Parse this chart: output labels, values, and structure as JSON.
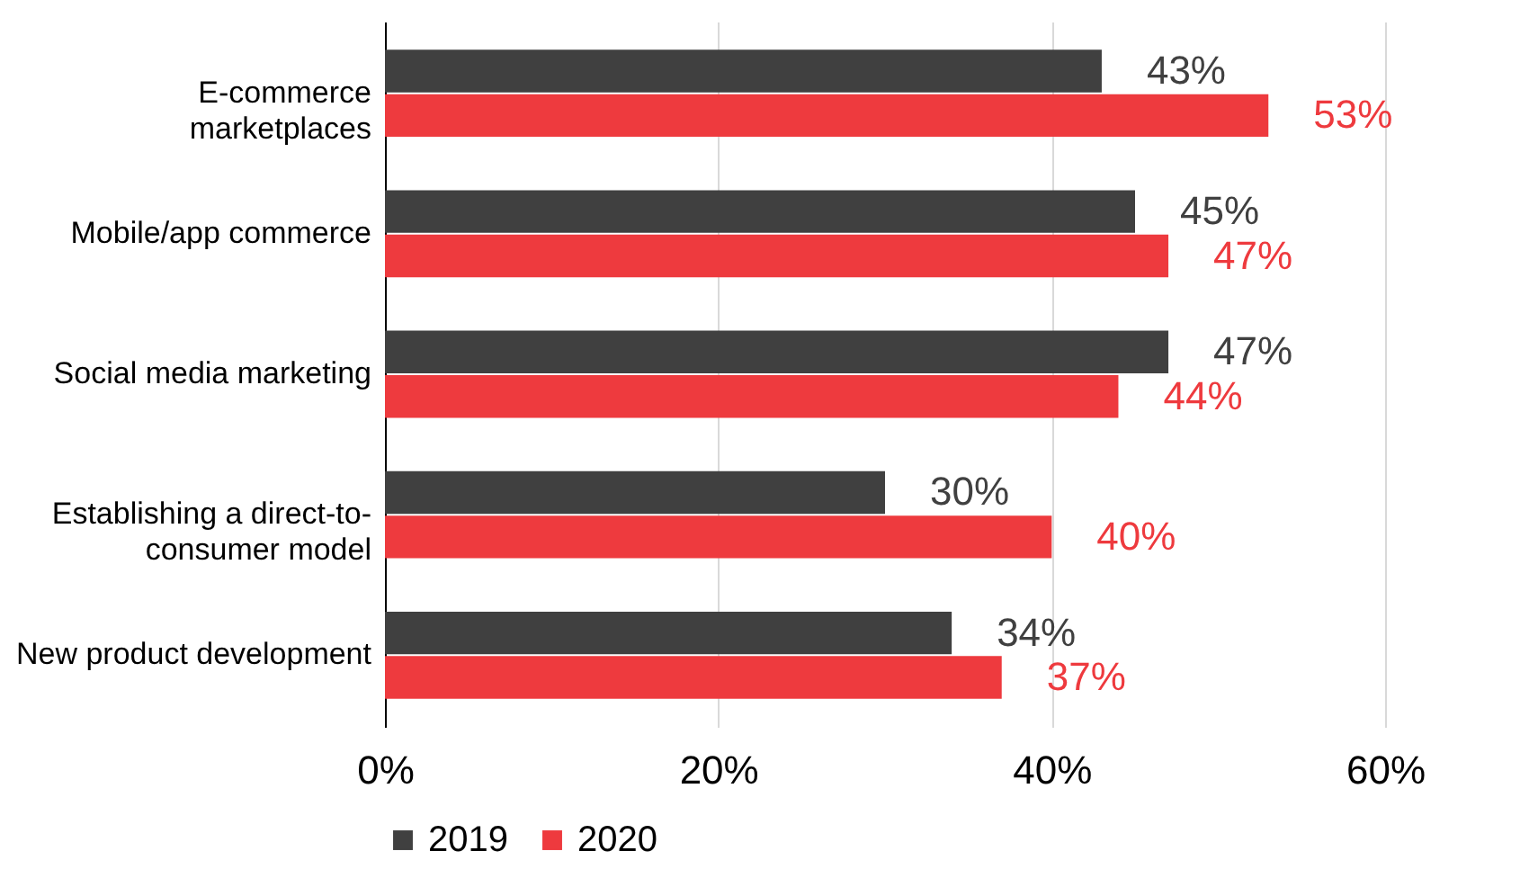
{
  "chart_data": {
    "type": "bar",
    "orientation": "horizontal",
    "categories": [
      "E-commerce\nmarketplaces",
      "Mobile/app commerce",
      "Social media marketing",
      "Establishing a direct-to-\nconsumer model",
      "New product development"
    ],
    "series": [
      {
        "name": "2019",
        "color": "#404040",
        "values": [
          43,
          45,
          47,
          30,
          34
        ],
        "value_labels": [
          "43%",
          "45%",
          "47%",
          "30%",
          "34%"
        ]
      },
      {
        "name": "2020",
        "color": "#ee3a3e",
        "values": [
          53,
          47,
          44,
          40,
          37
        ],
        "value_labels": [
          "53%",
          "47%",
          "44%",
          "40%",
          "37%"
        ]
      }
    ],
    "xlim": [
      0,
      60
    ],
    "xticks": [
      {
        "value": 0,
        "label": "0%"
      },
      {
        "value": 20,
        "label": "20%"
      },
      {
        "value": 40,
        "label": "40%"
      },
      {
        "value": 60,
        "label": "60%"
      }
    ],
    "grid": "x",
    "legend": "bottom"
  }
}
